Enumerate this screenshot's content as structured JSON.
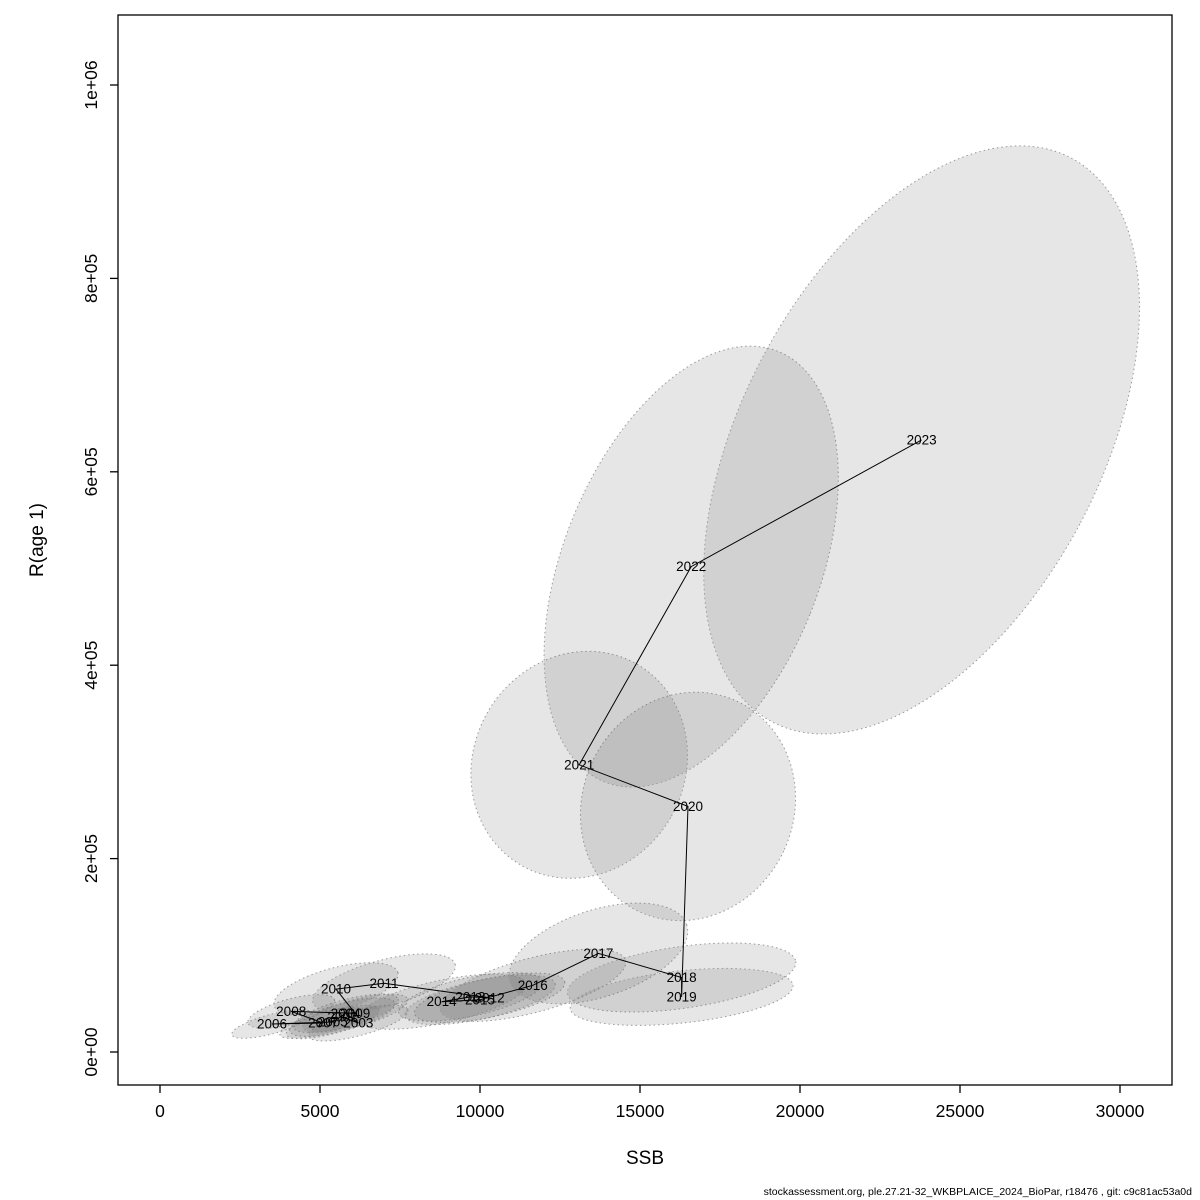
{
  "page": {
    "background": "#ffffff"
  },
  "footer": {
    "text": "stockassessment.org, ple.27.21-32_WKBPLAICE_2024_BioPar, r18476 , git: c9c81ac53a0d"
  },
  "chart_data": {
    "type": "scatter",
    "title": "",
    "xlabel": "SSB",
    "ylabel": "R(age 1)",
    "xlim": [
      0,
      30000
    ],
    "ylim": [
      0,
      1000000
    ],
    "grid": false,
    "legend": "none",
    "x_ticks": [
      0,
      5000,
      10000,
      15000,
      20000,
      25000,
      30000
    ],
    "x_tick_labels": [
      "0",
      "5000",
      "10000",
      "15000",
      "20000",
      "25000",
      "30000"
    ],
    "y_ticks": [
      0,
      200000,
      400000,
      600000,
      800000,
      1000000
    ],
    "y_tick_labels": [
      "0e+00",
      "2e+05",
      "4e+05",
      "6e+05",
      "8e+05",
      "1e+06"
    ],
    "label_color": "#ff0000",
    "line_color": "#000000",
    "ellipse_fill": "#666666",
    "ellipse_fill_opacity": 0.16,
    "ellipse_stroke": "#999999",
    "annotation": "years connected chronologically, each with dotted confidence ellipse",
    "points": [
      {
        "year": "2002",
        "ssb": 5700,
        "rec": 36000,
        "rx": 1700,
        "ry": 14000,
        "rot": -15
      },
      {
        "year": "2003",
        "ssb": 6200,
        "rec": 30000,
        "rx": 1600,
        "ry": 13000,
        "rot": -15
      },
      {
        "year": "2004",
        "ssb": 5800,
        "rec": 40000,
        "rx": 1700,
        "ry": 14000,
        "rot": -15
      },
      {
        "year": "2005",
        "ssb": 5400,
        "rec": 31000,
        "rx": 1500,
        "ry": 12000,
        "rot": -15
      },
      {
        "year": "2006",
        "ssb": 3500,
        "rec": 29000,
        "rx": 1300,
        "ry": 10000,
        "rot": -15
      },
      {
        "year": "2007",
        "ssb": 5100,
        "rec": 30000,
        "rx": 1400,
        "ry": 11000,
        "rot": -15
      },
      {
        "year": "2008",
        "ssb": 4100,
        "rec": 42000,
        "rx": 1400,
        "ry": 13000,
        "rot": -15
      },
      {
        "year": "2009",
        "ssb": 6100,
        "rec": 40000,
        "rx": 1700,
        "ry": 14000,
        "rot": -15
      },
      {
        "year": "2010",
        "ssb": 5500,
        "rec": 65000,
        "rx": 2000,
        "ry": 22000,
        "rot": -15
      },
      {
        "year": "2011",
        "ssb": 7000,
        "rec": 71000,
        "rx": 2300,
        "ry": 24000,
        "rot": -15
      },
      {
        "year": "2012",
        "ssb": 10300,
        "rec": 56000,
        "rx": 2400,
        "ry": 20000,
        "rot": -12
      },
      {
        "year": "2013",
        "ssb": 9700,
        "rec": 57000,
        "rx": 2300,
        "ry": 20000,
        "rot": -12
      },
      {
        "year": "2014",
        "ssb": 8800,
        "rec": 52000,
        "rx": 2700,
        "ry": 22000,
        "rot": -12
      },
      {
        "year": "2015",
        "ssb": 10000,
        "rec": 54000,
        "rx": 2400,
        "ry": 20000,
        "rot": -12
      },
      {
        "year": "2016",
        "ssb": 11650,
        "rec": 69000,
        "rx": 3000,
        "ry": 28000,
        "rot": -15
      },
      {
        "year": "2017",
        "ssb": 13700,
        "rec": 102000,
        "rx": 2900,
        "ry": 45000,
        "rot": -18
      },
      {
        "year": "2018",
        "ssb": 16300,
        "rec": 77000,
        "rx": 3600,
        "ry": 32000,
        "rot": -8
      },
      {
        "year": "2019",
        "ssb": 16300,
        "rec": 57000,
        "rx": 3500,
        "ry": 27000,
        "rot": -6
      },
      {
        "year": "2020",
        "ssb": 16500,
        "rec": 254000,
        "rx": 3300,
        "ry": 120000,
        "rot": 25
      },
      {
        "year": "2021",
        "ssb": 13100,
        "rec": 297000,
        "rx": 3300,
        "ry": 120000,
        "rot": 30
      },
      {
        "year": "2022",
        "ssb": 16600,
        "rec": 502000,
        "rx": 4000,
        "ry": 240000,
        "rot": 22
      },
      {
        "year": "2023",
        "ssb": 23800,
        "rec": 633000,
        "rx": 5600,
        "ry": 330000,
        "rot": 28
      }
    ]
  }
}
